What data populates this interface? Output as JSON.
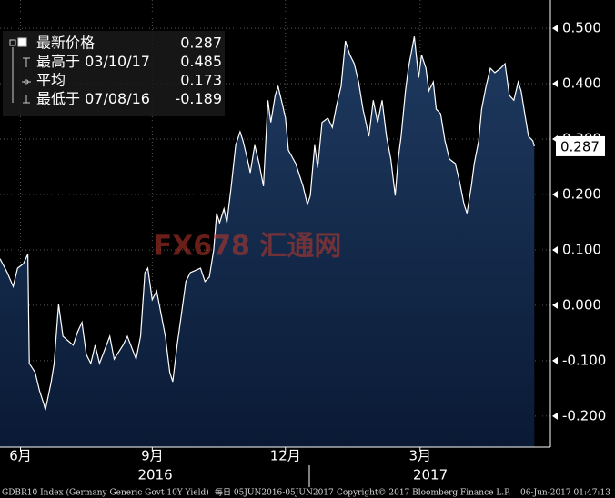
{
  "chart_data": {
    "type": "area",
    "color": "#ffffff",
    "fill_top": "#1e3a60",
    "fill_bottom": "#0a1a35",
    "grid": true,
    "xlim": [
      0,
      376
    ],
    "ylim": [
      -0.256,
      0.551
    ],
    "x": [
      0,
      5,
      9,
      12,
      16,
      19,
      20,
      24,
      27,
      30,
      31,
      35,
      37,
      40,
      43,
      50,
      53,
      56,
      59,
      62,
      65,
      68,
      75,
      78,
      84,
      87,
      93,
      96,
      99,
      101,
      104,
      107,
      110,
      113,
      116,
      118,
      121,
      124,
      127,
      130,
      137,
      140,
      143,
      146,
      148,
      150,
      153,
      155,
      158,
      161,
      164,
      166,
      169,
      171,
      174,
      177,
      180,
      183,
      185,
      188,
      190,
      193,
      195,
      197,
      202,
      207,
      210,
      212,
      215,
      217,
      220,
      224,
      227,
      230,
      233,
      236,
      239,
      242,
      245,
      248,
      252,
      255,
      258,
      261,
      264,
      267,
      270,
      272,
      274,
      277,
      279,
      283,
      286,
      288,
      291,
      293,
      296,
      298,
      301,
      304,
      307,
      311,
      314,
      317,
      319,
      322,
      324,
      327,
      329,
      332,
      335,
      338,
      342,
      345,
      348,
      351,
      354,
      356,
      359,
      361,
      364,
      365
    ],
    "values": [
      0.084,
      0.059,
      0.034,
      0.067,
      0.075,
      0.092,
      -0.105,
      -0.121,
      -0.154,
      -0.179,
      -0.189,
      -0.138,
      -0.105,
      0.002,
      -0.056,
      -0.072,
      -0.048,
      -0.031,
      -0.089,
      -0.105,
      -0.072,
      -0.105,
      -0.056,
      -0.097,
      -0.072,
      -0.056,
      -0.097,
      -0.056,
      0.059,
      0.067,
      0.01,
      0.026,
      -0.015,
      -0.056,
      -0.121,
      -0.138,
      -0.072,
      -0.015,
      0.043,
      0.059,
      0.067,
      0.043,
      0.051,
      0.1,
      0.166,
      0.149,
      0.174,
      0.149,
      0.215,
      0.289,
      0.313,
      0.297,
      0.264,
      0.239,
      0.289,
      0.256,
      0.215,
      0.37,
      0.33,
      0.379,
      0.395,
      0.362,
      0.338,
      0.28,
      0.256,
      0.215,
      0.182,
      0.198,
      0.289,
      0.248,
      0.33,
      0.338,
      0.321,
      0.362,
      0.395,
      0.477,
      0.452,
      0.436,
      0.403,
      0.354,
      0.305,
      0.37,
      0.33,
      0.37,
      0.305,
      0.264,
      0.198,
      0.264,
      0.305,
      0.387,
      0.428,
      0.485,
      0.411,
      0.452,
      0.428,
      0.387,
      0.403,
      0.354,
      0.346,
      0.297,
      0.264,
      0.256,
      0.223,
      0.182,
      0.166,
      0.215,
      0.256,
      0.297,
      0.354,
      0.395,
      0.428,
      0.42,
      0.428,
      0.436,
      0.379,
      0.37,
      0.403,
      0.387,
      0.338,
      0.305,
      0.297,
      0.287
    ],
    "yticks": [
      {
        "value": 0.5,
        "label": "0.500"
      },
      {
        "value": 0.4,
        "label": "0.400"
      },
      {
        "value": 0.3,
        "label": "0.300"
      },
      {
        "value": 0.2,
        "label": "0.200"
      },
      {
        "value": 0.1,
        "label": "0.100"
      },
      {
        "value": 0,
        "label": "0.000"
      },
      {
        "value": -0.1,
        "label": "-0.100"
      },
      {
        "value": -0.2,
        "label": "-0.200"
      }
    ],
    "xticks": [
      {
        "value": 14,
        "label": "6月"
      },
      {
        "value": 104,
        "label": "9月"
      },
      {
        "value": 195,
        "label": "12月"
      },
      {
        "value": 287,
        "label": "3月"
      }
    ],
    "year_ticks": [
      {
        "value": 106,
        "label": "2016"
      },
      {
        "value": 294,
        "label": "2017"
      }
    ],
    "legend": [
      {
        "label": "最新价格",
        "value": 0.287
      },
      {
        "label": "最高于 03/10/17",
        "value": 0.485
      },
      {
        "label": "平均",
        "value": 0.173
      },
      {
        "label": "最低于 07/08/16",
        "value": -0.189
      }
    ],
    "watermark": "FX678 汇通网",
    "footer": [
      "GDBR10 Index (Germany Generic Govt 10Y Yield)",
      "每日 05JUN2016-05JUN2017",
      "Copyright© 2017 Bloomberg Finance L.P.",
      "06-Jun-2017 01:47:13"
    ]
  }
}
